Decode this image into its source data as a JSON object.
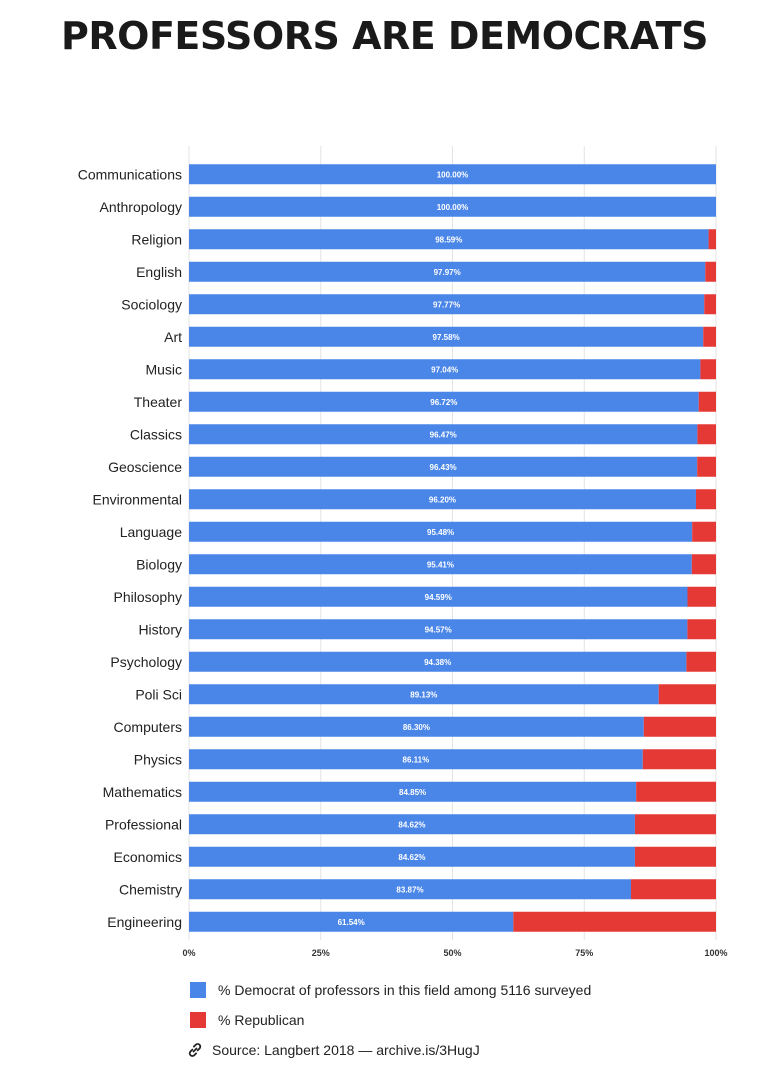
{
  "title": "PROFESSORS ARE DEMOCRATS",
  "legend": {
    "democrat": "% Democrat of professors in this field among 5116 surveyed",
    "republican": "% Republican",
    "source": "Source: Langbert 2018 — archive.is/3HugJ",
    "source_icon": "link-icon"
  },
  "chart_data": {
    "type": "bar",
    "orientation": "horizontal",
    "stacked": true,
    "categories": [
      "Communications",
      "Anthropology",
      "Religion",
      "English",
      "Sociology",
      "Art",
      "Music",
      "Theater",
      "Classics",
      "Geoscience",
      "Environmental",
      "Language",
      "Biology",
      "Philosophy",
      "History",
      "Psychology",
      "Poli Sci",
      "Computers",
      "Physics",
      "Mathematics",
      "Professional",
      "Economics",
      "Chemistry",
      "Engineering"
    ],
    "series": [
      {
        "name": "% Democrat of professors in this field among 5116 surveyed",
        "color": "#4a86e8",
        "values": [
          100.0,
          100.0,
          98.59,
          97.97,
          97.77,
          97.58,
          97.04,
          96.72,
          96.47,
          96.43,
          96.2,
          95.48,
          95.41,
          94.59,
          94.57,
          94.38,
          89.13,
          86.3,
          86.11,
          84.85,
          84.62,
          84.62,
          83.87,
          61.54
        ],
        "labels": [
          "100.00%",
          "100.00%",
          "98.59%",
          "97.97%",
          "97.77%",
          "97.58%",
          "97.04%",
          "96.72%",
          "96.47%",
          "96.43%",
          "96.20%",
          "95.48%",
          "95.41%",
          "94.59%",
          "94.57%",
          "94.38%",
          "89.13%",
          "86.30%",
          "86.11%",
          "84.85%",
          "84.62%",
          "84.62%",
          "83.87%",
          "61.54%"
        ]
      },
      {
        "name": "% Republican",
        "color": "#e53935",
        "values": [
          0.0,
          0.0,
          1.41,
          2.03,
          2.23,
          2.42,
          2.96,
          3.28,
          3.53,
          3.57,
          3.8,
          4.52,
          4.59,
          5.41,
          5.43,
          5.62,
          10.87,
          13.7,
          13.89,
          15.15,
          15.38,
          15.38,
          16.13,
          38.46
        ]
      }
    ],
    "x_ticks": [
      "0%",
      "25%",
      "50%",
      "75%",
      "100%"
    ],
    "xlim": [
      0,
      100
    ],
    "grid": true,
    "legend_position": "bottom"
  }
}
